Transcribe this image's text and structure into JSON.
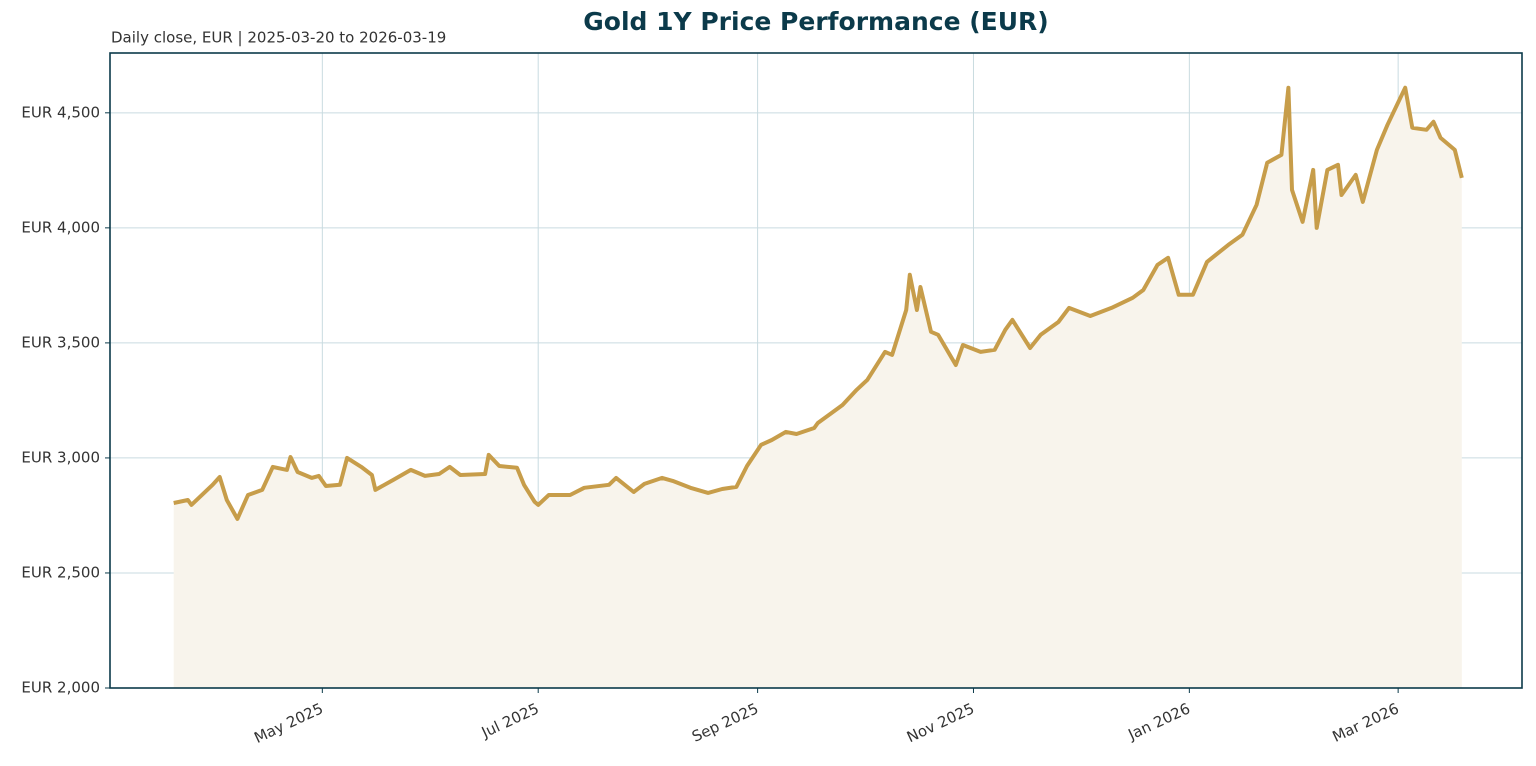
{
  "chart_data": {
    "type": "line",
    "title": "Gold 1Y Price Performance (EUR)",
    "subtitle": "Daily close, EUR | 2025-03-20 to 2026-03-19",
    "x": [
      "2025-03-20",
      "2025-03-24",
      "2025-03-25",
      "2025-03-31",
      "2025-04-02",
      "2025-04-04",
      "2025-04-07",
      "2025-04-10",
      "2025-04-14",
      "2025-04-17",
      "2025-04-21",
      "2025-04-22",
      "2025-04-24",
      "2025-04-28",
      "2025-04-30",
      "2025-05-02",
      "2025-05-06",
      "2025-05-08",
      "2025-05-12",
      "2025-05-15",
      "2025-05-16",
      "2025-05-21",
      "2025-05-26",
      "2025-05-30",
      "2025-06-03",
      "2025-06-06",
      "2025-06-09",
      "2025-06-16",
      "2025-06-17",
      "2025-06-20",
      "2025-06-25",
      "2025-06-27",
      "2025-06-30",
      "2025-07-01",
      "2025-07-04",
      "2025-07-10",
      "2025-07-14",
      "2025-07-21",
      "2025-07-23",
      "2025-07-28",
      "2025-07-31",
      "2025-08-05",
      "2025-08-08",
      "2025-08-13",
      "2025-08-18",
      "2025-08-22",
      "2025-08-26",
      "2025-08-29",
      "2025-09-02",
      "2025-09-05",
      "2025-09-09",
      "2025-09-12",
      "2025-09-17",
      "2025-09-18",
      "2025-09-22",
      "2025-09-25",
      "2025-09-29",
      "2025-10-02",
      "2025-10-07",
      "2025-10-09",
      "2025-10-13",
      "2025-10-14",
      "2025-10-16",
      "2025-10-17",
      "2025-10-20",
      "2025-10-22",
      "2025-10-27",
      "2025-10-29",
      "2025-11-03",
      "2025-11-07",
      "2025-11-10",
      "2025-11-12",
      "2025-11-17",
      "2025-11-20",
      "2025-11-25",
      "2025-11-28",
      "2025-12-04",
      "2025-12-10",
      "2025-12-16",
      "2025-12-19",
      "2025-12-23",
      "2025-12-26",
      "2025-12-29",
      "2026-01-02",
      "2026-01-06",
      "2026-01-12",
      "2026-01-16",
      "2026-01-20",
      "2026-01-23",
      "2026-01-27",
      "2026-01-29",
      "2026-01-30",
      "2026-02-02",
      "2026-02-05",
      "2026-02-06",
      "2026-02-09",
      "2026-02-12",
      "2026-02-13",
      "2026-02-17",
      "2026-02-19",
      "2026-02-23",
      "2026-02-26",
      "2026-03-03",
      "2026-03-05",
      "2026-03-09",
      "2026-03-11",
      "2026-03-13",
      "2026-03-17",
      "2026-03-19"
    ],
    "series": [
      {
        "name": "Gold",
        "color": "#c79d4a",
        "values": [
          2804,
          2817,
          2796,
          2883,
          2917,
          2817,
          2735,
          2839,
          2861,
          2961,
          2948,
          3004,
          2939,
          2913,
          2922,
          2878,
          2883,
          3000,
          2961,
          2926,
          2861,
          2904,
          2948,
          2922,
          2930,
          2961,
          2926,
          2930,
          3013,
          2965,
          2957,
          2883,
          2809,
          2796,
          2839,
          2839,
          2870,
          2883,
          2913,
          2852,
          2887,
          2913,
          2900,
          2870,
          2848,
          2865,
          2874,
          2965,
          3057,
          3078,
          3113,
          3104,
          3130,
          3152,
          3196,
          3230,
          3296,
          3339,
          3461,
          3448,
          3643,
          3796,
          3643,
          3743,
          3548,
          3535,
          3404,
          3491,
          3461,
          3470,
          3557,
          3600,
          3478,
          3535,
          3591,
          3652,
          3617,
          3652,
          3696,
          3730,
          3839,
          3870,
          3709,
          3709,
          3852,
          3926,
          3970,
          4100,
          4283,
          4317,
          4609,
          4165,
          4026,
          4252,
          4000,
          4252,
          4274,
          4143,
          4230,
          4113,
          4339,
          4448,
          4609,
          4435,
          4426,
          4461,
          4391,
          4339,
          4217
        ]
      }
    ],
    "xlim": [
      "2025-03-02",
      "2026-04-05"
    ],
    "xticks": [
      {
        "value": "2025-05-01",
        "label": "May 2025"
      },
      {
        "value": "2025-07-01",
        "label": "Jul 2025"
      },
      {
        "value": "2025-09-01",
        "label": "Sep 2025"
      },
      {
        "value": "2025-11-01",
        "label": "Nov 2025"
      },
      {
        "value": "2026-01-01",
        "label": "Jan 2026"
      },
      {
        "value": "2026-03-01",
        "label": "Mar 2026"
      }
    ],
    "ylim": [
      2000,
      4760
    ],
    "yticks": [
      {
        "value": 2000,
        "label": "EUR 2,000"
      },
      {
        "value": 2500,
        "label": "EUR 2,500"
      },
      {
        "value": 3000,
        "label": "EUR 3,000"
      },
      {
        "value": 3500,
        "label": "EUR 3,500"
      },
      {
        "value": 4000,
        "label": "EUR 4,000"
      },
      {
        "value": 4500,
        "label": "EUR 4,500"
      }
    ],
    "grid": true,
    "fill": "#f8f4ec"
  }
}
